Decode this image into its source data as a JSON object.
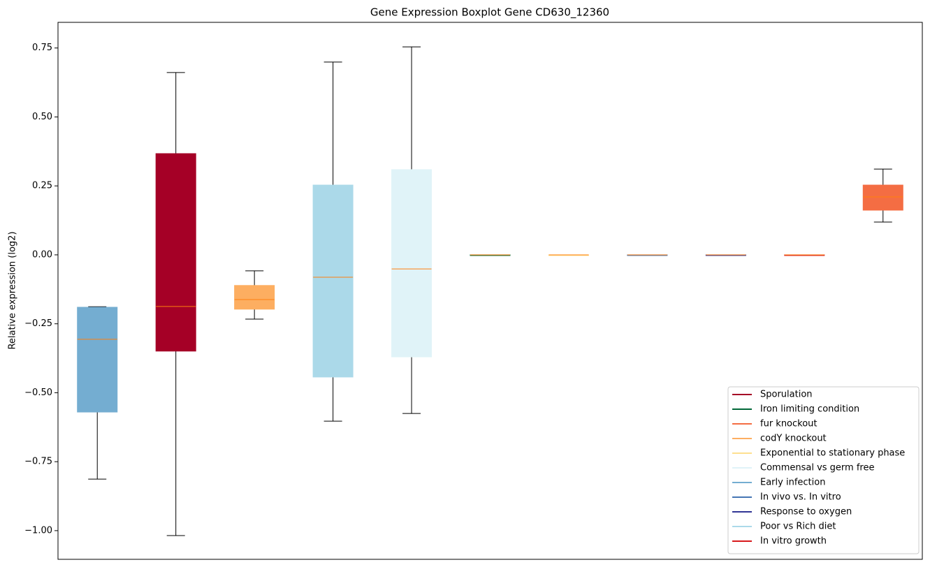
{
  "chart_data": {
    "type": "box",
    "title": "Gene Expression Boxplot Gene CD630_12360",
    "ylabel": "Relative expression (log2)",
    "ylim": [
      -1.104,
      0.843
    ],
    "yticks": [
      0.75,
      {
        "value": 0.5,
        "label": "0.50"
      },
      0.25,
      {
        "value": 0,
        "label": "0.00"
      },
      {
        "value": -0.25,
        "label": "−0.25"
      },
      {
        "value": -0.5,
        "label": "−0.50"
      },
      {
        "value": -0.75,
        "label": "−0.75"
      },
      {
        "value": -1,
        "label": "−1.00"
      }
    ],
    "median_color": "#ff7f0e",
    "boxes": [
      {
        "color": "#74add1",
        "low": -0.813,
        "q1": -0.57,
        "median": -0.306,
        "q3": -0.19,
        "high": -0.188
      },
      {
        "color": "#a50026",
        "low": -1.018,
        "q1": -0.349,
        "median": -0.187,
        "q3": 0.367,
        "high": 0.661
      },
      {
        "color": "#fdae61",
        "low": -0.233,
        "q1": -0.197,
        "median": -0.162,
        "q3": -0.111,
        "high": -0.058
      },
      {
        "color": "#abd9e9",
        "low": -0.603,
        "q1": -0.443,
        "median": -0.081,
        "q3": 0.253,
        "high": 0.699
      },
      {
        "color": "#e0f3f8",
        "low": -0.575,
        "q1": -0.37,
        "median": -0.051,
        "q3": 0.309,
        "high": 0.754
      },
      {
        "color": "#006837",
        "low": 0,
        "q1": 0,
        "median": 0,
        "q3": 0,
        "high": 0
      },
      {
        "color": "#fee090",
        "low": 0,
        "q1": 0,
        "median": 0,
        "q3": 0,
        "high": 0
      },
      {
        "color": "#4575b4",
        "low": 0,
        "q1": 0,
        "median": 0,
        "q3": 0,
        "high": 0
      },
      {
        "color": "#313695",
        "low": 0,
        "q1": 0,
        "median": 0,
        "q3": 0,
        "high": 0
      },
      {
        "color": "#d7191c",
        "low": 0,
        "q1": 0,
        "median": 0,
        "q3": 0,
        "high": 0
      },
      {
        "color": "#f46d43",
        "low": 0.119,
        "q1": 0.162,
        "median": 0.21,
        "q3": 0.253,
        "high": 0.311
      }
    ],
    "legend_position": "lower right",
    "legend": [
      {
        "name": "Sporulation",
        "color": "#a50026"
      },
      {
        "name": "Iron limiting condition",
        "color": "#006837"
      },
      {
        "name": "fur knockout",
        "color": "#f46d43"
      },
      {
        "name": "codY knockout",
        "color": "#fdae61"
      },
      {
        "name": "Exponential to stationary phase",
        "color": "#fee090"
      },
      {
        "name": "Commensal vs germ free",
        "color": "#e0f3f8"
      },
      {
        "name": "Early infection",
        "color": "#74add1"
      },
      {
        "name": "In vivo vs. In vitro",
        "color": "#4575b4"
      },
      {
        "name": "Response to oxygen",
        "color": "#313695"
      },
      {
        "name": "Poor vs Rich diet",
        "color": "#abd9e9"
      },
      {
        "name": "In vitro growth",
        "color": "#d7191c"
      }
    ]
  }
}
